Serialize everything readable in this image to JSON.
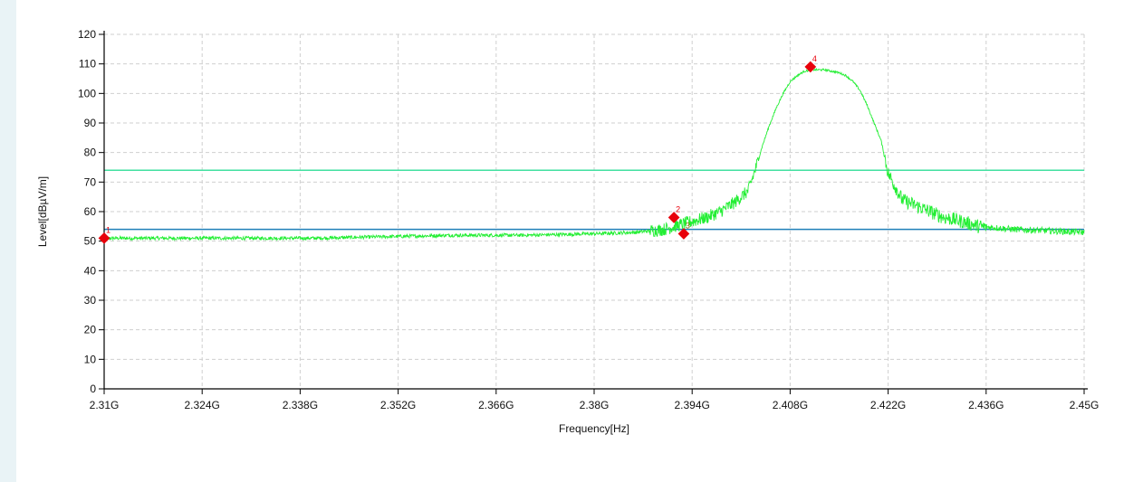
{
  "chart_data": {
    "type": "line",
    "title": "",
    "xlabel": "Frequency[Hz]",
    "ylabel": "Level[dBµV/m]",
    "xlim": [
      2.31,
      2.45
    ],
    "ylim": [
      0,
      120
    ],
    "grid": true,
    "x_ticks": [
      {
        "value": 2.31,
        "label": "2.31G"
      },
      {
        "value": 2.324,
        "label": "2.324G"
      },
      {
        "value": 2.338,
        "label": "2.338G"
      },
      {
        "value": 2.352,
        "label": "2.352G"
      },
      {
        "value": 2.366,
        "label": "2.366G"
      },
      {
        "value": 2.38,
        "label": "2.38G"
      },
      {
        "value": 2.394,
        "label": "2.394G"
      },
      {
        "value": 2.408,
        "label": "2.408G"
      },
      {
        "value": 2.422,
        "label": "2.422G"
      },
      {
        "value": 2.436,
        "label": "2.436G"
      },
      {
        "value": 2.45,
        "label": "2.45G"
      }
    ],
    "y_ticks": [
      {
        "value": 0,
        "label": "0"
      },
      {
        "value": 10,
        "label": "10"
      },
      {
        "value": 20,
        "label": "20"
      },
      {
        "value": 30,
        "label": "30"
      },
      {
        "value": 40,
        "label": "40"
      },
      {
        "value": 50,
        "label": "50"
      },
      {
        "value": 60,
        "label": "60"
      },
      {
        "value": 70,
        "label": "70"
      },
      {
        "value": 80,
        "label": "80"
      },
      {
        "value": 90,
        "label": "90"
      },
      {
        "value": 100,
        "label": "100"
      },
      {
        "value": 110,
        "label": "110"
      },
      {
        "value": 120,
        "label": "120"
      }
    ],
    "limit_lines": [
      {
        "value": 74,
        "color": "#40e0a0"
      },
      {
        "value": 54,
        "color": "#1f7fb8"
      }
    ],
    "series": [
      {
        "color": "#22ee33",
        "x": [
          2.31,
          2.32,
          2.33,
          2.34,
          2.35,
          2.36,
          2.37,
          2.38,
          2.386,
          2.39,
          2.393,
          2.396,
          2.398,
          2.4,
          2.402,
          2.403,
          2.404,
          2.405,
          2.406,
          2.407,
          2.408,
          2.409,
          2.41,
          2.411,
          2.412,
          2.413,
          2.414,
          2.415,
          2.416,
          2.417,
          2.418,
          2.419,
          2.42,
          2.421,
          2.422,
          2.424,
          2.426,
          2.428,
          2.43,
          2.432,
          2.435,
          2.44,
          2.445,
          2.45
        ],
        "y": [
          51,
          51,
          51,
          51,
          51.5,
          52,
          52,
          52.5,
          53,
          54,
          56,
          58,
          60,
          63,
          67,
          74,
          82,
          89,
          95,
          100,
          104,
          106,
          107.5,
          108,
          108,
          108,
          107.5,
          107,
          106,
          104,
          101,
          96,
          90,
          84,
          73,
          64,
          62,
          60,
          58,
          57,
          55,
          54,
          53.5,
          53
        ]
      }
    ],
    "markers": [
      {
        "label": "1",
        "x": 2.31,
        "y": 51
      },
      {
        "label": "2",
        "x": 2.3914,
        "y": 58
      },
      {
        "label": "3",
        "x": 2.3928,
        "y": 52.5
      },
      {
        "label": "4",
        "x": 2.4109,
        "y": 109
      }
    ]
  }
}
